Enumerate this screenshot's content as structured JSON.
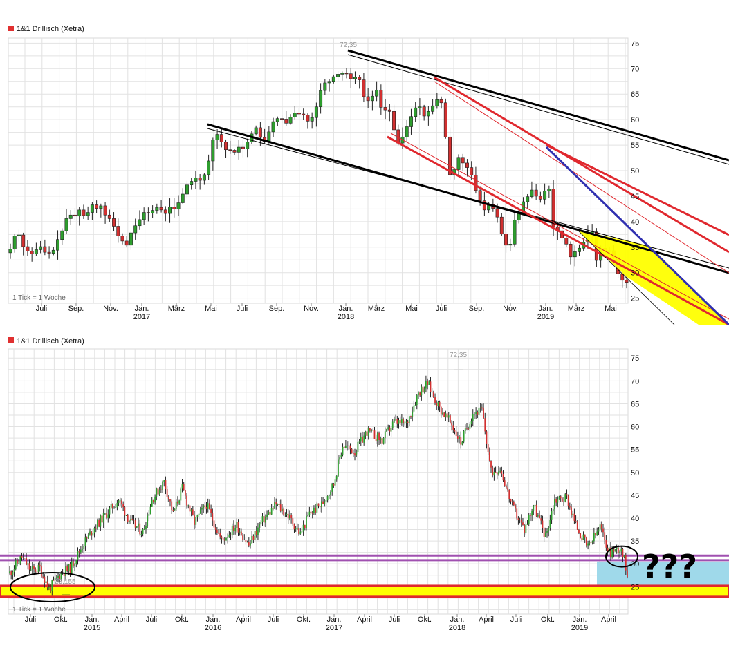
{
  "colors": {
    "up": "#2e9e2e",
    "down": "#d23030",
    "grid": "#e2e2e2",
    "trend_black": "#000000",
    "trend_red": "#e0282e",
    "trend_blue": "#3030b0",
    "zone_yellow": "#ffff00",
    "zone_blue": "#9fd9ea",
    "support_purple": "#a050b0",
    "legend_square": "#e03030"
  },
  "chart_data": [
    {
      "type": "candlestick",
      "title": "1&1 Drillisch (Xetra)",
      "note": "1 Tick = 1 Woche",
      "period": "weekly",
      "ylim": [
        24,
        76
      ],
      "yticks": [
        25,
        30,
        35,
        40,
        45,
        50,
        55,
        60,
        65,
        70,
        75
      ],
      "x_month_labels": [
        "Juli",
        "Sep.",
        "Nov.",
        "Jan.",
        "März",
        "Mai",
        "Juli",
        "Sep.",
        "Nov.",
        "Jan.",
        "März",
        "Mai",
        "Juli",
        "Sep.",
        "Nov.",
        "Jan.",
        "März",
        "Mai"
      ],
      "x_year_labels": [
        "2017",
        "2018",
        "2019"
      ],
      "annotations": [
        "72,35"
      ],
      "low_label": "",
      "closes": [
        34.6,
        37.2,
        37.4,
        35.1,
        34.2,
        33.7,
        34.5,
        35.1,
        34.0,
        33.8,
        34.4,
        36.5,
        38.2,
        40.6,
        41.3,
        41.1,
        42.3,
        41.2,
        41.8,
        43.3,
        42.6,
        43.1,
        41.3,
        40.6,
        39.1,
        37.2,
        36.2,
        35.4,
        37.8,
        39.2,
        40.4,
        41.8,
        41.7,
        42.2,
        42.8,
        42.3,
        41.6,
        42.9,
        42.5,
        43.7,
        45.4,
        47.2,
        47.9,
        48.6,
        48.1,
        49.2,
        51.9,
        56.0,
        57.1,
        55.6,
        54.1,
        54.0,
        53.6,
        54.6,
        54.3,
        55.6,
        57.2,
        58.4,
        56.5,
        55.7,
        57.6,
        59.6,
        60.2,
        60.1,
        59.3,
        60.5,
        61.3,
        61.1,
        60.9,
        59.7,
        60.4,
        62.5,
        65.7,
        67.2,
        67.5,
        68.4,
        68.9,
        69.1,
        69.0,
        68.0,
        68.3,
        67.8,
        64.5,
        63.7,
        64.6,
        65.8,
        62.4,
        61.9,
        61.6,
        58.0,
        55.4,
        56.6,
        58.6,
        60.6,
        62.3,
        62.5,
        60.7,
        61.6,
        62.7,
        63.9,
        63.3,
        56.6,
        49.2,
        50.2,
        52.6,
        51.5,
        50.6,
        49.1,
        46.1,
        44.1,
        42.3,
        43.4,
        42.6,
        40.9,
        37.6,
        35.4,
        35.6,
        40.3,
        41.8,
        43.9,
        44.9,
        46.2,
        45.0,
        44.4,
        46.0,
        46.4,
        39.0,
        38.2,
        36.8,
        35.6,
        33.1,
        34.1,
        34.8,
        36.0,
        37.5,
        38.0,
        32.4,
        34.8,
        34.2,
        34.3,
        33.0,
        29.8,
        28.5,
        28.1
      ],
      "opens": [
        33.9,
        34.6,
        37.2,
        37.4,
        35.1,
        34.2,
        33.7,
        34.5,
        35.1,
        34.0,
        33.8,
        34.4,
        36.5,
        38.2,
        40.6,
        41.3,
        41.1,
        42.3,
        41.2,
        41.8,
        43.3,
        42.6,
        43.1,
        41.3,
        40.6,
        39.1,
        37.2,
        36.2,
        35.4,
        37.8,
        39.2,
        40.4,
        41.8,
        41.7,
        42.2,
        42.8,
        42.3,
        41.6,
        42.9,
        42.5,
        43.7,
        45.4,
        47.2,
        47.9,
        48.6,
        48.1,
        49.2,
        51.9,
        56.0,
        57.1,
        55.6,
        54.1,
        54.0,
        53.6,
        54.6,
        54.3,
        55.6,
        57.2,
        58.4,
        56.5,
        55.7,
        57.6,
        59.6,
        60.2,
        60.1,
        59.3,
        60.5,
        61.3,
        61.1,
        60.9,
        59.7,
        60.4,
        62.5,
        65.7,
        67.2,
        67.5,
        68.4,
        68.9,
        69.1,
        69.0,
        68.0,
        68.3,
        67.8,
        64.5,
        63.7,
        64.6,
        65.8,
        62.4,
        61.9,
        61.6,
        58.0,
        55.4,
        56.6,
        58.6,
        60.6,
        62.3,
        62.5,
        60.7,
        61.6,
        62.7,
        63.9,
        63.3,
        56.6,
        49.2,
        50.2,
        52.6,
        51.5,
        50.6,
        49.1,
        46.1,
        44.1,
        42.3,
        43.4,
        42.6,
        40.9,
        37.6,
        35.4,
        35.6,
        40.3,
        41.8,
        43.9,
        44.9,
        46.2,
        45.0,
        44.4,
        46.0,
        46.4,
        39.0,
        38.2,
        36.8,
        35.6,
        33.1,
        34.1,
        34.8,
        36.0,
        37.5,
        38.0,
        32.4,
        34.8,
        34.2,
        34.3,
        33.0,
        29.8,
        28.5
      ]
    },
    {
      "type": "candlestick",
      "title": "1&1 Drillisch (Xetra)",
      "note": "1 Tick = 1 Woche",
      "period": "weekly",
      "ylim": [
        19,
        77
      ],
      "yticks": [
        25,
        30,
        35,
        40,
        45,
        50,
        55,
        60,
        65,
        70,
        75
      ],
      "x_month_labels": [
        "Juli",
        "Okt.",
        "Jan.",
        "April",
        "Juli",
        "Okt.",
        "Jan.",
        "April",
        "Juli",
        "Okt.",
        "Jan.",
        "April",
        "Juli",
        "Okt.",
        "Jan.",
        "April",
        "Juli",
        "Okt.",
        "Jan.",
        "April"
      ],
      "x_year_labels": [
        "2015",
        "2016",
        "2017",
        "2018",
        "2019"
      ],
      "annotations": [
        "72,35",
        "23,155"
      ],
      "question": "???",
      "keypoints": [
        [
          0,
          28.0
        ],
        [
          8,
          31.5
        ],
        [
          14,
          28.5
        ],
        [
          20,
          29.0
        ],
        [
          26,
          24.5
        ],
        [
          34,
          28.0
        ],
        [
          40,
          29.0
        ],
        [
          48,
          34.0
        ],
        [
          56,
          38.0
        ],
        [
          64,
          41.0
        ],
        [
          72,
          44.0
        ],
        [
          80,
          39.0
        ],
        [
          88,
          37.0
        ],
        [
          94,
          44.0
        ],
        [
          102,
          48.0
        ],
        [
          108,
          41.0
        ],
        [
          114,
          46.5
        ],
        [
          122,
          39.0
        ],
        [
          130,
          43.0
        ],
        [
          140,
          35.0
        ],
        [
          150,
          38.5
        ],
        [
          158,
          34.0
        ],
        [
          166,
          39.0
        ],
        [
          176,
          43.0
        ],
        [
          184,
          40.5
        ],
        [
          192,
          36.5
        ],
        [
          198,
          41.0
        ],
        [
          206,
          43.0
        ],
        [
          214,
          47.5
        ],
        [
          220,
          56.0
        ],
        [
          228,
          54.5
        ],
        [
          236,
          59.0
        ],
        [
          246,
          57.0
        ],
        [
          254,
          61.0
        ],
        [
          262,
          60.5
        ],
        [
          270,
          67.5
        ],
        [
          276,
          69.5
        ],
        [
          284,
          64.0
        ],
        [
          292,
          60.5
        ],
        [
          298,
          56.5
        ],
        [
          306,
          63.0
        ],
        [
          312,
          63.5
        ],
        [
          318,
          50.0
        ],
        [
          324,
          51.0
        ],
        [
          332,
          42.5
        ],
        [
          340,
          37.5
        ],
        [
          346,
          43.0
        ],
        [
          354,
          36.0
        ],
        [
          360,
          44.0
        ],
        [
          368,
          44.5
        ],
        [
          374,
          38.5
        ],
        [
          382,
          33.5
        ],
        [
          390,
          38.0
        ],
        [
          396,
          32.5
        ],
        [
          404,
          33.5
        ],
        [
          408,
          28.0
        ]
      ]
    }
  ]
}
